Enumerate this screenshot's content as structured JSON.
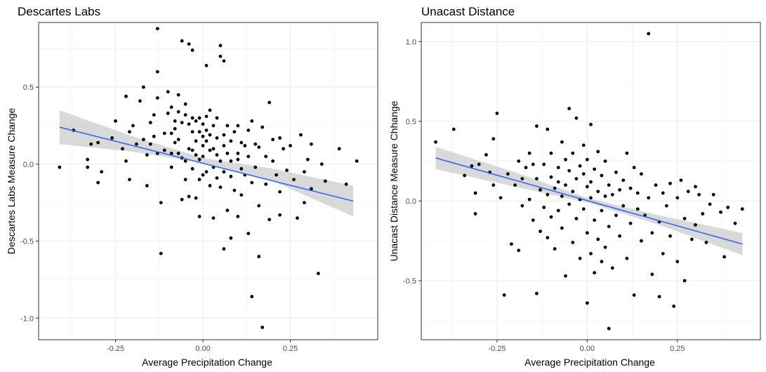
{
  "chart_data": [
    {
      "type": "scatter",
      "title": "Descartes Labs",
      "xlabel": "Average Precipitation Change",
      "ylabel": "Descartes Labs Measure Change",
      "xlim": [
        -0.47,
        0.5
      ],
      "ylim": [
        -1.14,
        0.92
      ],
      "x_ticks": [
        -0.25,
        0.0,
        0.25
      ],
      "x_tick_labels": [
        "-0.25",
        "0.00",
        "0.25"
      ],
      "y_ticks": [
        -1.0,
        -0.5,
        0.0,
        0.5
      ],
      "y_tick_labels": [
        "-1.0",
        "-0.5",
        "0.0",
        "0.5"
      ],
      "grid": true,
      "point_color": "#000000",
      "fit_line": {
        "x": [
          -0.41,
          0.43
        ],
        "y": [
          0.24,
          -0.24
        ],
        "color": "#3366FF"
      },
      "confidence_band": {
        "x": [
          -0.41,
          -0.2,
          0.0,
          0.2,
          0.43
        ],
        "lower": [
          0.13,
          0.08,
          0.01,
          -0.11,
          -0.34
        ],
        "upper": [
          0.35,
          0.18,
          0.04,
          -0.03,
          -0.14
        ],
        "color": "#BFBFBF"
      },
      "points": [
        [
          -0.41,
          -0.02
        ],
        [
          -0.37,
          0.22
        ],
        [
          -0.33,
          0.03
        ],
        [
          -0.33,
          -0.02
        ],
        [
          -0.32,
          0.13
        ],
        [
          -0.3,
          0.14
        ],
        [
          -0.29,
          -0.05
        ],
        [
          -0.3,
          -0.12
        ],
        [
          -0.26,
          0.17
        ],
        [
          -0.25,
          0.28
        ],
        [
          -0.23,
          0.1
        ],
        [
          -0.22,
          0.44
        ],
        [
          -0.22,
          0.02
        ],
        [
          -0.21,
          -0.1
        ],
        [
          -0.21,
          0.21
        ],
        [
          -0.2,
          0.25
        ],
        [
          -0.19,
          0.13
        ],
        [
          -0.18,
          0.41
        ],
        [
          -0.17,
          0.5
        ],
        [
          -0.17,
          0.16
        ],
        [
          -0.16,
          0.06
        ],
        [
          -0.16,
          -0.14
        ],
        [
          -0.15,
          0.27
        ],
        [
          -0.15,
          0.13
        ],
        [
          -0.14,
          0.18
        ],
        [
          -0.14,
          0.32
        ],
        [
          -0.13,
          0.07
        ],
        [
          -0.13,
          0.6
        ],
        [
          -0.13,
          0.43
        ],
        [
          -0.13,
          0.88
        ],
        [
          -0.12,
          -0.25
        ],
        [
          -0.12,
          -0.58
        ],
        [
          -0.11,
          0.2
        ],
        [
          -0.11,
          0.09
        ],
        [
          -0.1,
          0.47
        ],
        [
          -0.1,
          0.33
        ],
        [
          -0.09,
          0.37
        ],
        [
          -0.09,
          0.07
        ],
        [
          -0.09,
          0.2
        ],
        [
          -0.09,
          -0.02
        ],
        [
          -0.08,
          0.28
        ],
        [
          -0.08,
          0.14
        ],
        [
          -0.08,
          0.23
        ],
        [
          -0.07,
          0.07
        ],
        [
          -0.07,
          0.45
        ],
        [
          -0.07,
          0.34
        ],
        [
          -0.07,
          0.16
        ],
        [
          -0.06,
          0.27
        ],
        [
          -0.06,
          0.04
        ],
        [
          -0.06,
          -0.23
        ],
        [
          -0.06,
          0.8
        ],
        [
          -0.05,
          0.32
        ],
        [
          -0.05,
          0.02
        ],
        [
          -0.05,
          0.39
        ],
        [
          -0.05,
          -0.1
        ],
        [
          -0.04,
          0.1
        ],
        [
          -0.04,
          0.26
        ],
        [
          -0.04,
          -0.21
        ],
        [
          -0.04,
          0.78
        ],
        [
          -0.03,
          0.21
        ],
        [
          -0.03,
          0.3
        ],
        [
          -0.03,
          0.09
        ],
        [
          -0.03,
          -0.03
        ],
        [
          -0.03,
          0.74
        ],
        [
          -0.02,
          0.28
        ],
        [
          -0.02,
          -0.22
        ],
        [
          -0.02,
          0.06
        ],
        [
          -0.02,
          0.15
        ],
        [
          -0.01,
          0.3
        ],
        [
          -0.01,
          0.21
        ],
        [
          -0.01,
          0.03
        ],
        [
          -0.01,
          -0.1
        ],
        [
          -0.01,
          -0.34
        ],
        [
          0.0,
          0.12
        ],
        [
          0.0,
          0.26
        ],
        [
          0.0,
          0.05
        ],
        [
          0.0,
          0.18
        ],
        [
          0.0,
          -0.07
        ],
        [
          0.01,
          0.64
        ],
        [
          0.01,
          0.22
        ],
        [
          0.01,
          0.31
        ],
        [
          0.01,
          0.15
        ],
        [
          0.01,
          -0.05
        ],
        [
          0.02,
          0.19
        ],
        [
          0.02,
          0.09
        ],
        [
          0.02,
          0.35
        ],
        [
          0.02,
          -0.14
        ],
        [
          0.03,
          0.1
        ],
        [
          0.03,
          0.25
        ],
        [
          0.03,
          -0.02
        ],
        [
          0.03,
          -0.35
        ],
        [
          0.04,
          0.17
        ],
        [
          0.04,
          0.06
        ],
        [
          0.04,
          -0.09
        ],
        [
          0.04,
          0.3
        ],
        [
          0.05,
          0.7
        ],
        [
          0.05,
          0.77
        ],
        [
          0.05,
          -0.15
        ],
        [
          0.05,
          0.02
        ],
        [
          0.06,
          0.19
        ],
        [
          0.06,
          0.12
        ],
        [
          0.06,
          0.67
        ],
        [
          0.06,
          -0.05
        ],
        [
          0.06,
          -0.55
        ],
        [
          0.07,
          0.07
        ],
        [
          0.07,
          0.25
        ],
        [
          0.07,
          -0.3
        ],
        [
          0.08,
          0.15
        ],
        [
          0.08,
          -0.08
        ],
        [
          0.08,
          0.02
        ],
        [
          0.08,
          -0.48
        ],
        [
          0.09,
          0.21
        ],
        [
          0.09,
          -0.17
        ],
        [
          0.1,
          0.07
        ],
        [
          0.1,
          0.25
        ],
        [
          0.1,
          0.03
        ],
        [
          0.1,
          -0.34
        ],
        [
          0.11,
          0.14
        ],
        [
          0.11,
          -0.03
        ],
        [
          0.11,
          -0.2
        ],
        [
          0.12,
          0.12
        ],
        [
          0.12,
          -0.07
        ],
        [
          0.13,
          0.22
        ],
        [
          0.13,
          -0.45
        ],
        [
          0.13,
          0.05
        ],
        [
          0.14,
          0.28
        ],
        [
          0.14,
          -0.12
        ],
        [
          0.14,
          -0.86
        ],
        [
          0.15,
          0.13
        ],
        [
          0.15,
          -0.02
        ],
        [
          0.16,
          -0.27
        ],
        [
          0.16,
          0.11
        ],
        [
          0.16,
          -0.6
        ],
        [
          0.17,
          0.24
        ],
        [
          0.17,
          -1.06
        ],
        [
          0.18,
          0.05
        ],
        [
          0.18,
          -0.13
        ],
        [
          0.19,
          0.4
        ],
        [
          0.19,
          -0.36
        ],
        [
          0.2,
          0.16
        ],
        [
          0.2,
          0.02
        ],
        [
          0.21,
          -0.07
        ],
        [
          0.22,
          0.17
        ],
        [
          0.22,
          -0.33
        ],
        [
          0.22,
          -0.18
        ],
        [
          0.23,
          0.1
        ],
        [
          0.24,
          -0.04
        ],
        [
          0.25,
          0.12
        ],
        [
          0.26,
          -0.1
        ],
        [
          0.27,
          -0.35
        ],
        [
          0.28,
          0.19
        ],
        [
          0.29,
          -0.05
        ],
        [
          0.29,
          -0.25
        ],
        [
          0.3,
          0.03
        ],
        [
          0.31,
          0.13
        ],
        [
          0.31,
          -0.16
        ],
        [
          0.33,
          -0.71
        ],
        [
          0.34,
          0.0
        ],
        [
          0.35,
          -0.11
        ],
        [
          0.39,
          0.1
        ],
        [
          0.41,
          -0.13
        ],
        [
          0.44,
          0.02
        ]
      ]
    },
    {
      "type": "scatter",
      "title": "Unacast Distance",
      "xlabel": "Average Precipitation Change",
      "ylabel": "Unacast Distance Measure Chhange",
      "xlim": [
        -0.46,
        0.48
      ],
      "ylim": [
        -0.87,
        1.12
      ],
      "x_ticks": [
        -0.25,
        0.0,
        0.25
      ],
      "x_tick_labels": [
        "-0.25",
        "0.00",
        "0.25"
      ],
      "y_ticks": [
        -0.5,
        0.0,
        0.5,
        1.0
      ],
      "y_tick_labels": [
        "-0.5",
        "0.0",
        "0.5",
        "1.0"
      ],
      "grid": true,
      "point_color": "#000000",
      "fit_line": {
        "x": [
          -0.42,
          0.43
        ],
        "y": [
          0.27,
          -0.27
        ],
        "color": "#3366FF"
      },
      "confidence_band": {
        "x": [
          -0.42,
          -0.2,
          0.0,
          0.2,
          0.43
        ],
        "lower": [
          0.2,
          0.09,
          -0.01,
          -0.15,
          -0.34
        ],
        "upper": [
          0.34,
          0.18,
          0.02,
          -0.09,
          -0.2
        ],
        "color": "#BFBFBF"
      },
      "points": [
        [
          -0.42,
          0.37
        ],
        [
          -0.37,
          0.45
        ],
        [
          -0.34,
          0.16
        ],
        [
          -0.32,
          0.22
        ],
        [
          -0.31,
          0.05
        ],
        [
          -0.31,
          -0.08
        ],
        [
          -0.3,
          0.23
        ],
        [
          -0.28,
          0.29
        ],
        [
          -0.27,
          0.18
        ],
        [
          -0.26,
          0.39
        ],
        [
          -0.26,
          0.1
        ],
        [
          -0.25,
          0.55
        ],
        [
          -0.24,
          0.02
        ],
        [
          -0.23,
          -0.59
        ],
        [
          -0.22,
          0.17
        ],
        [
          -0.21,
          -0.27
        ],
        [
          -0.2,
          0.1
        ],
        [
          -0.19,
          0.25
        ],
        [
          -0.19,
          -0.31
        ],
        [
          -0.18,
          0.14
        ],
        [
          -0.18,
          -0.03
        ],
        [
          -0.17,
          0.21
        ],
        [
          -0.16,
          0.01
        ],
        [
          -0.16,
          0.3
        ],
        [
          -0.15,
          0.23
        ],
        [
          -0.15,
          -0.12
        ],
        [
          -0.14,
          0.47
        ],
        [
          -0.14,
          0.14
        ],
        [
          -0.14,
          -0.58
        ],
        [
          -0.13,
          -0.19
        ],
        [
          -0.13,
          0.07
        ],
        [
          -0.12,
          0.23
        ],
        [
          -0.12,
          -0.04
        ],
        [
          -0.11,
          0.04
        ],
        [
          -0.11,
          0.45
        ],
        [
          -0.11,
          -0.23
        ],
        [
          -0.1,
          0.15
        ],
        [
          -0.1,
          -0.1
        ],
        [
          -0.1,
          0.3
        ],
        [
          -0.09,
          0.08
        ],
        [
          -0.09,
          -0.3
        ],
        [
          -0.08,
          0.21
        ],
        [
          -0.08,
          -0.06
        ],
        [
          -0.08,
          0.12
        ],
        [
          -0.07,
          0.37
        ],
        [
          -0.07,
          -0.17
        ],
        [
          -0.07,
          0.03
        ],
        [
          -0.06,
          0.26
        ],
        [
          -0.06,
          -0.47
        ],
        [
          -0.06,
          0.1
        ],
        [
          -0.05,
          -0.02
        ],
        [
          -0.05,
          0.19
        ],
        [
          -0.05,
          0.58
        ],
        [
          -0.04,
          0.06
        ],
        [
          -0.04,
          -0.26
        ],
        [
          -0.04,
          0.3
        ],
        [
          -0.03,
          0.14
        ],
        [
          -0.03,
          -0.11
        ],
        [
          -0.03,
          0.52
        ],
        [
          -0.02,
          0.01
        ],
        [
          -0.02,
          0.22
        ],
        [
          -0.02,
          -0.36
        ],
        [
          -0.01,
          0.17
        ],
        [
          -0.01,
          -0.05
        ],
        [
          -0.01,
          0.35
        ],
        [
          0.0,
          0.09
        ],
        [
          0.0,
          -0.2
        ],
        [
          0.0,
          0.26
        ],
        [
          0.0,
          -0.64
        ],
        [
          0.01,
          0.12
        ],
        [
          0.01,
          0.02
        ],
        [
          0.01,
          0.48
        ],
        [
          0.01,
          -0.33
        ],
        [
          0.02,
          0.2
        ],
        [
          0.02,
          -0.12
        ],
        [
          0.02,
          -0.45
        ],
        [
          0.03,
          0.06
        ],
        [
          0.03,
          0.31
        ],
        [
          0.03,
          -0.24
        ],
        [
          0.04,
          0.16
        ],
        [
          0.04,
          -0.06
        ],
        [
          0.04,
          -0.38
        ],
        [
          0.05,
          0.03
        ],
        [
          0.05,
          0.25
        ],
        [
          0.05,
          -0.29
        ],
        [
          0.06,
          0.1
        ],
        [
          0.06,
          -0.16
        ],
        [
          0.06,
          -0.8
        ],
        [
          0.07,
          0.04
        ],
        [
          0.07,
          -0.42
        ],
        [
          0.08,
          0.18
        ],
        [
          0.08,
          -0.09
        ],
        [
          0.09,
          0.07
        ],
        [
          0.09,
          -0.22
        ],
        [
          0.1,
          0.13
        ],
        [
          0.1,
          -0.03
        ],
        [
          0.11,
          0.3
        ],
        [
          0.11,
          -0.36
        ],
        [
          0.12,
          0.08
        ],
        [
          0.12,
          -0.14
        ],
        [
          0.13,
          0.21
        ],
        [
          0.13,
          -0.59
        ],
        [
          0.14,
          -0.05
        ],
        [
          0.14,
          0.05
        ],
        [
          0.15,
          -0.25
        ],
        [
          0.15,
          0.17
        ],
        [
          0.16,
          -0.09
        ],
        [
          0.17,
          1.05
        ],
        [
          0.17,
          0.02
        ],
        [
          0.18,
          -0.46
        ],
        [
          0.18,
          -0.2
        ],
        [
          0.19,
          0.1
        ],
        [
          0.2,
          -0.13
        ],
        [
          0.2,
          -0.6
        ],
        [
          0.21,
          0.05
        ],
        [
          0.21,
          -0.33
        ],
        [
          0.22,
          -0.03
        ],
        [
          0.23,
          0.11
        ],
        [
          0.23,
          -0.22
        ],
        [
          0.24,
          -0.66
        ],
        [
          0.25,
          0.02
        ],
        [
          0.25,
          -0.38
        ],
        [
          0.26,
          0.13
        ],
        [
          0.27,
          -0.11
        ],
        [
          0.27,
          -0.5
        ],
        [
          0.28,
          0.06
        ],
        [
          0.29,
          -0.24
        ],
        [
          0.3,
          0.09
        ],
        [
          0.3,
          -0.15
        ],
        [
          0.31,
          0.04
        ],
        [
          0.32,
          -0.08
        ],
        [
          0.33,
          -0.26
        ],
        [
          0.34,
          -0.02
        ],
        [
          0.35,
          0.04
        ],
        [
          0.37,
          -0.07
        ],
        [
          0.38,
          -0.35
        ],
        [
          0.39,
          -0.04
        ],
        [
          0.41,
          -0.14
        ],
        [
          0.43,
          -0.05
        ]
      ]
    }
  ]
}
